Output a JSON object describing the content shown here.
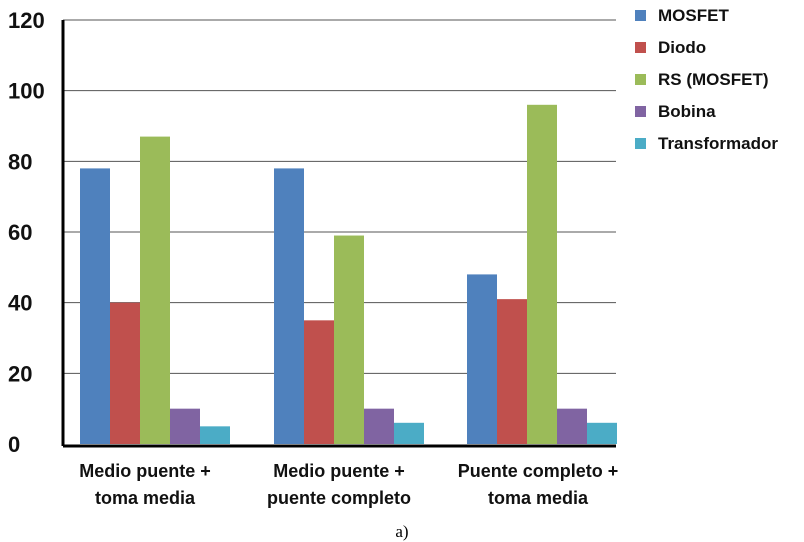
{
  "chart_data": {
    "type": "bar",
    "categories": [
      [
        "Medio puente +",
        "toma media"
      ],
      [
        "Medio puente +",
        "puente completo"
      ],
      [
        "Puente completo +",
        "toma media"
      ]
    ],
    "series": [
      {
        "name": "MOSFET",
        "color": "#4f81bd",
        "values": [
          78,
          78,
          48
        ]
      },
      {
        "name": "Diodo",
        "color": "#c0504d",
        "values": [
          40,
          35,
          41
        ]
      },
      {
        "name": "RS (MOSFET)",
        "color": "#9bbb59",
        "values": [
          87,
          59,
          96
        ]
      },
      {
        "name": "Bobina",
        "color": "#8064a2",
        "values": [
          10,
          10,
          10
        ]
      },
      {
        "name": "Transformador",
        "color": "#4bacc6",
        "values": [
          5,
          6,
          6
        ]
      }
    ],
    "ylim": [
      0,
      120
    ],
    "yticks": [
      0,
      20,
      40,
      60,
      80,
      100,
      120
    ],
    "grid": true,
    "legend": "right",
    "caption": "a)"
  }
}
